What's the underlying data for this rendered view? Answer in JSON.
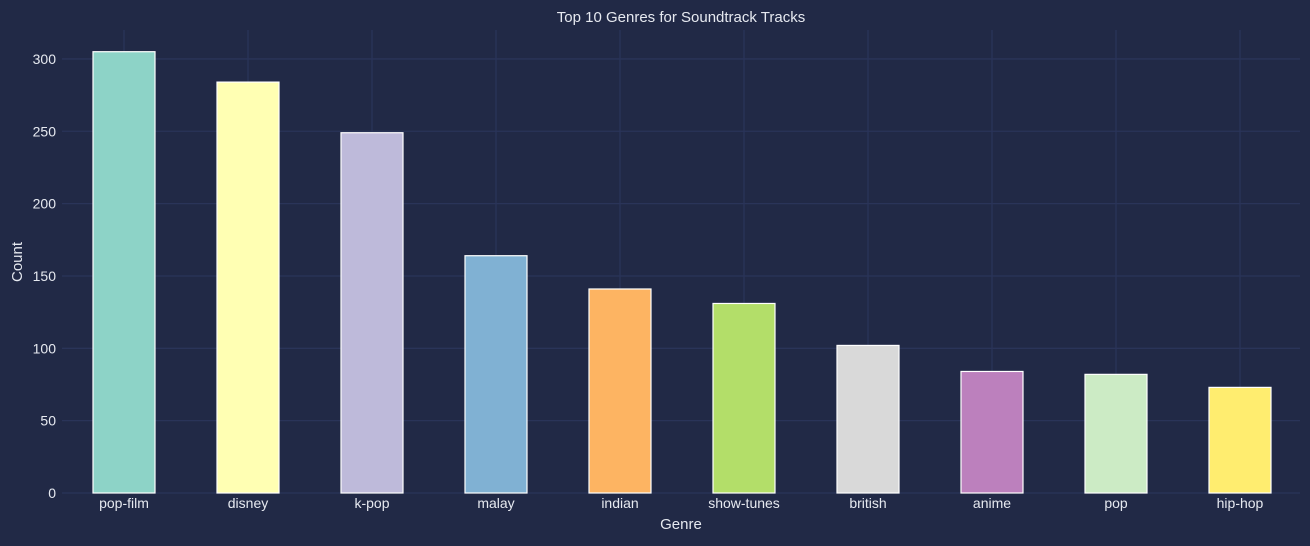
{
  "chart_data": {
    "type": "bar",
    "title": "Top 10 Genres for Soundtrack Tracks",
    "xlabel": "Genre",
    "ylabel": "Count",
    "categories": [
      "pop-film",
      "disney",
      "k-pop",
      "malay",
      "indian",
      "show-tunes",
      "british",
      "anime",
      "pop",
      "hip-hop"
    ],
    "values": [
      305,
      284,
      249,
      164,
      141,
      131,
      102,
      84,
      82,
      73
    ],
    "colors": [
      "#8dd3c7",
      "#ffffb3",
      "#bebada",
      "#80b1d3",
      "#fdb462",
      "#b3de69",
      "#d9d9d9",
      "#bc80bd",
      "#ccebc5",
      "#ffed6f"
    ],
    "ylim": [
      0,
      320
    ],
    "yticks": [
      0,
      50,
      100,
      150,
      200,
      250,
      300
    ],
    "grid": true,
    "legend": "none"
  },
  "theme": {
    "background": "#212946",
    "grid_color": "#2a3459",
    "text_color": "#e6e9f0",
    "bar_edge_color": "#ffffff"
  }
}
